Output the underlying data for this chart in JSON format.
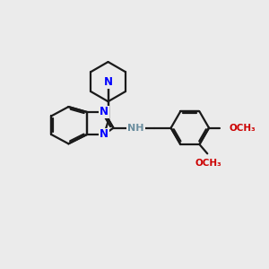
{
  "background_color": "#ebebeb",
  "bond_color": "#1a1a1a",
  "N_color": "#0000ff",
  "NH_color": "#6b8e9f",
  "O_color": "#cc0000",
  "line_width": 1.6,
  "font_size": 8.5,
  "fig_size": [
    3.0,
    3.0
  ],
  "dpi": 100,
  "xlim": [
    0,
    10
  ],
  "ylim": [
    0,
    10
  ]
}
